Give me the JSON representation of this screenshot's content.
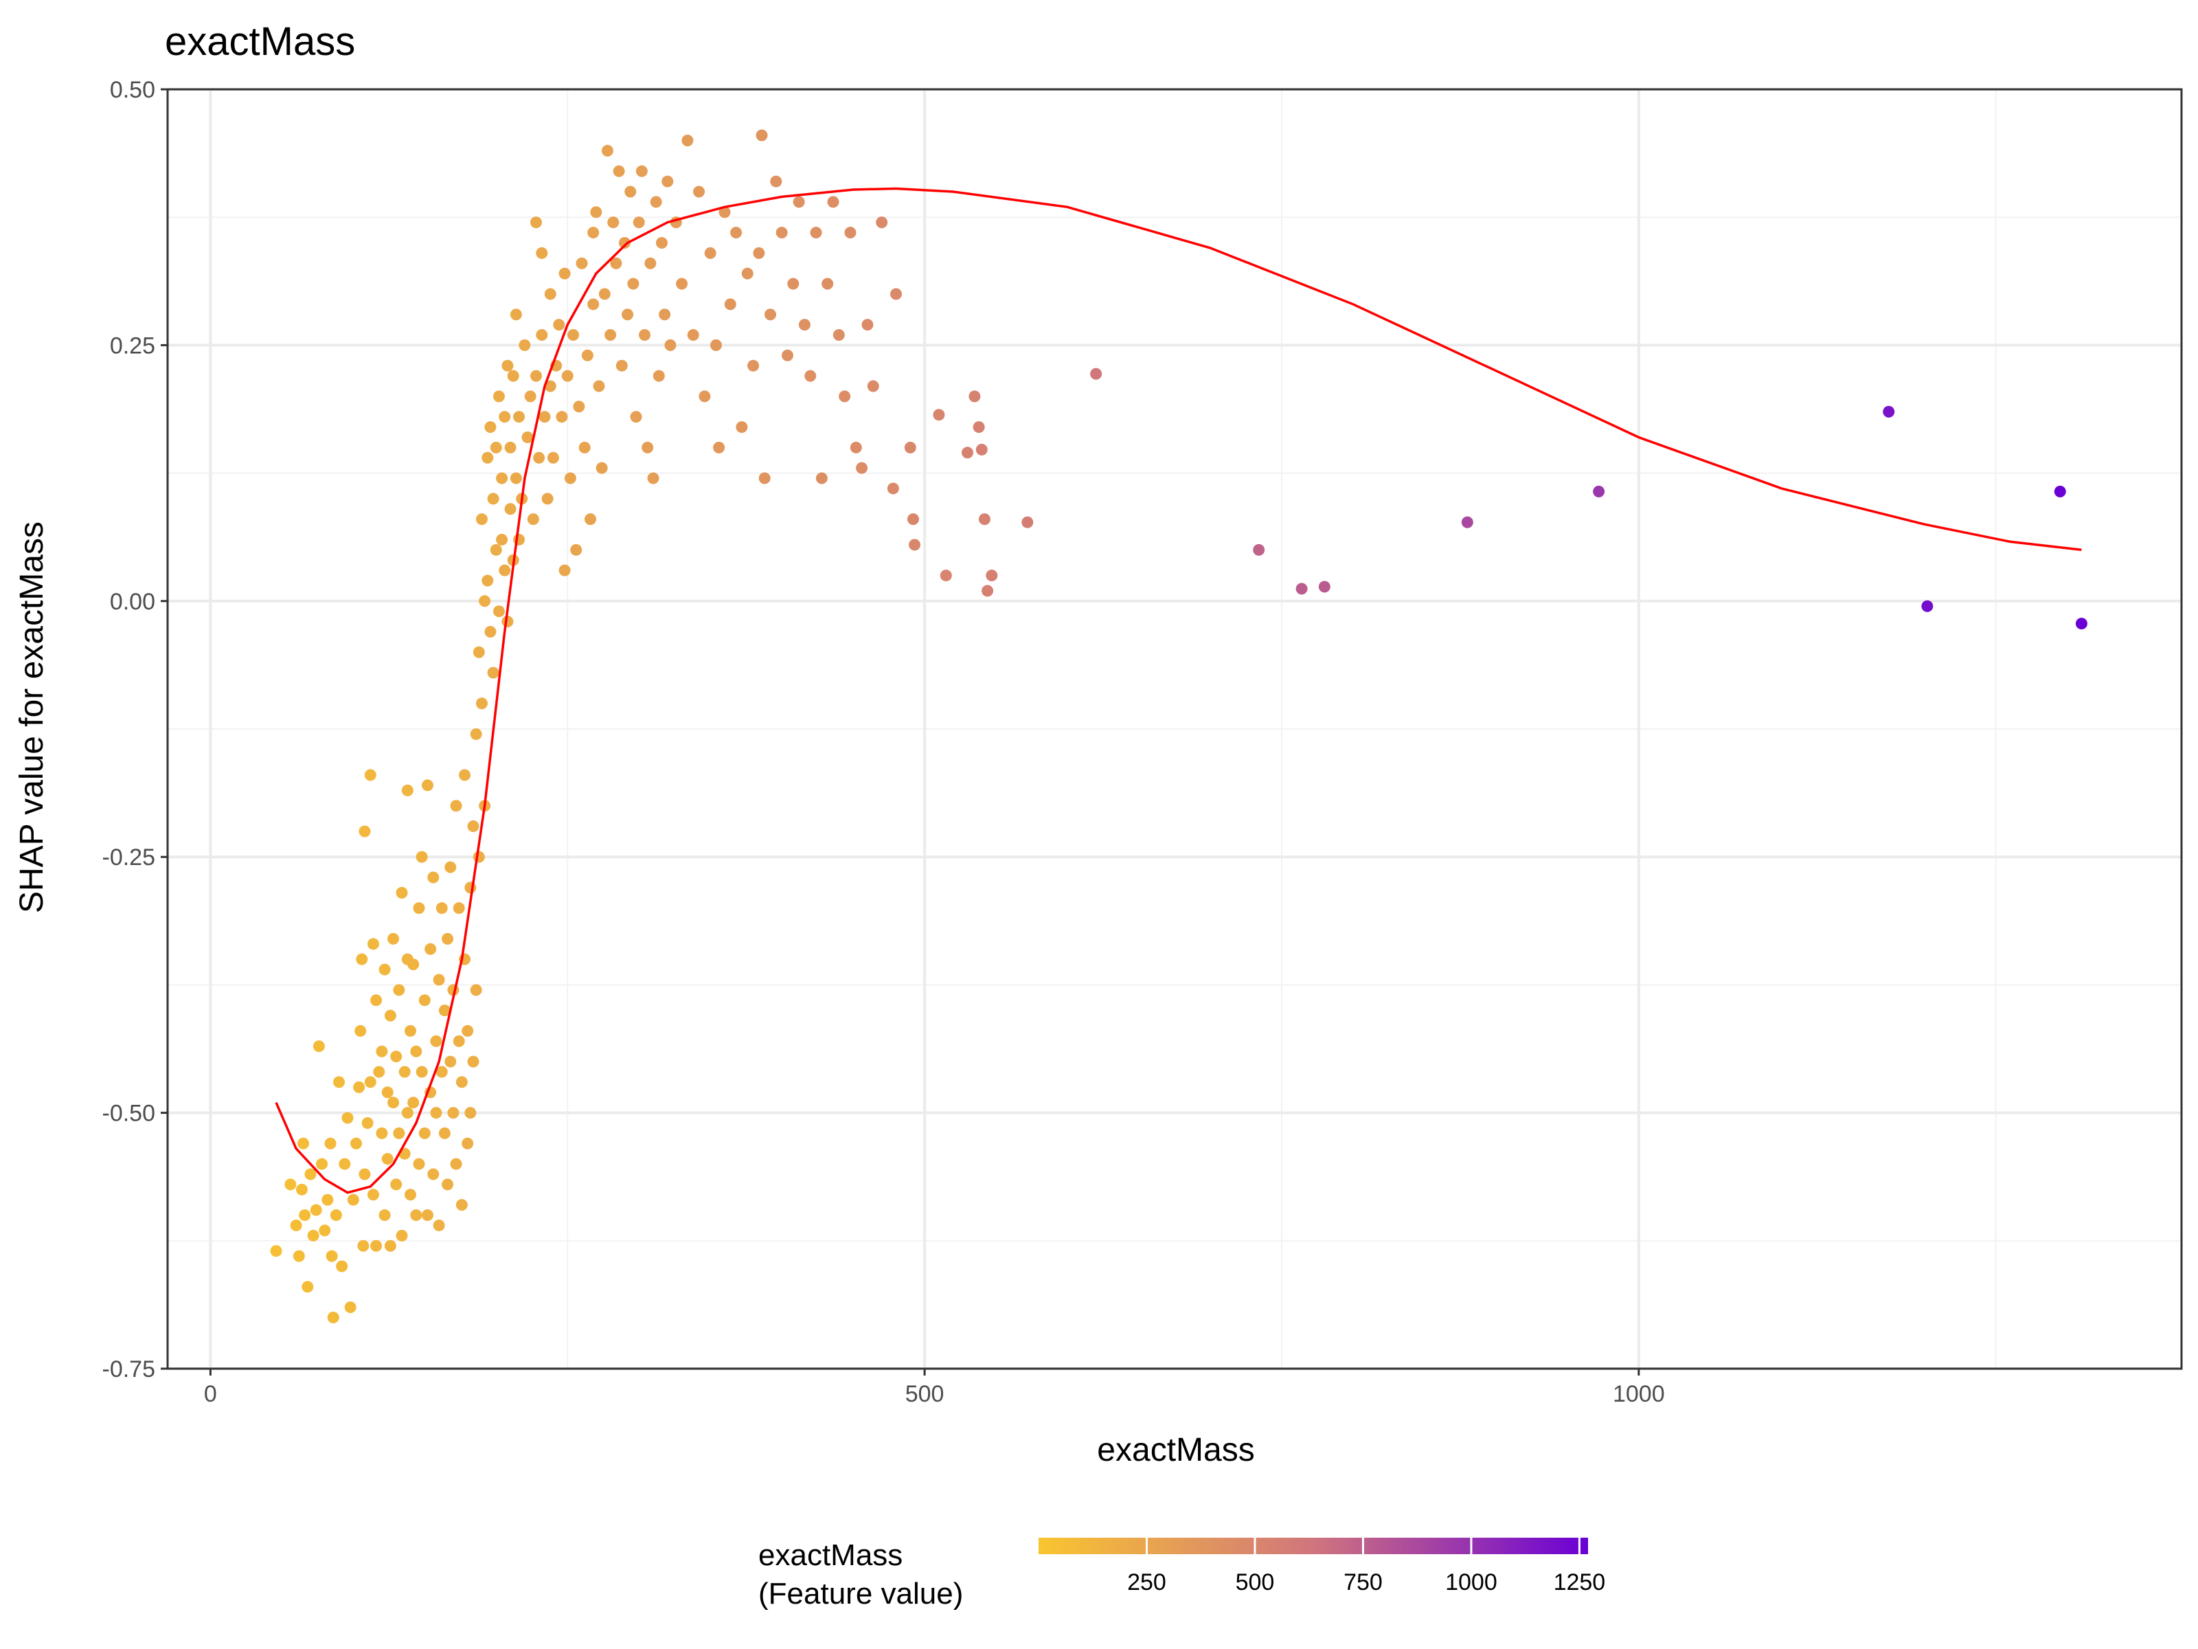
{
  "chart_data": {
    "type": "scatter",
    "title": "exactMass",
    "xlabel": "exactMass",
    "ylabel": "SHAP value for exactMass",
    "xlim": [
      -30,
      1380
    ],
    "ylim": [
      -0.75,
      0.5
    ],
    "x_ticks": [
      0,
      500,
      1000
    ],
    "x_tick_labels": [
      "0",
      "500",
      "1000"
    ],
    "y_ticks": [
      -0.75,
      -0.5,
      -0.25,
      0,
      0.25,
      0.5
    ],
    "y_tick_labels": [
      "-0.75",
      "-0.50",
      "-0.25",
      "0.00",
      "0.25",
      "0.50"
    ],
    "grid": true,
    "legend": {
      "title_line1": "exactMass",
      "title_line2": "(Feature value)",
      "position": "bottom",
      "range": [
        0,
        1270
      ],
      "ticks": [
        250,
        500,
        750,
        1000,
        1250
      ],
      "tick_labels": [
        "250",
        "500",
        "750",
        "1000",
        "1250"
      ],
      "color_low": "#f9c52f",
      "color_mid": "#d0757d",
      "color_high": "#6a00d6"
    },
    "colors": {
      "smooth_line": "#ff0000",
      "panel_border": "#333333",
      "grid_major": "#ebebeb",
      "grid_minor": "#f2f2f2"
    },
    "series": [
      {
        "type": "scatter",
        "points": [
          [
            46,
            -0.635
          ],
          [
            56,
            -0.57
          ],
          [
            60,
            -0.61
          ],
          [
            62,
            -0.64
          ],
          [
            64,
            -0.575
          ],
          [
            65,
            -0.53
          ],
          [
            66,
            -0.6
          ],
          [
            68,
            -0.67
          ],
          [
            70,
            -0.56
          ],
          [
            72,
            -0.62
          ],
          [
            74,
            -0.595
          ],
          [
            76,
            -0.435
          ],
          [
            78,
            -0.55
          ],
          [
            80,
            -0.615
          ],
          [
            82,
            -0.585
          ],
          [
            84,
            -0.53
          ],
          [
            85,
            -0.64
          ],
          [
            86,
            -0.7
          ],
          [
            88,
            -0.6
          ],
          [
            90,
            -0.47
          ],
          [
            92,
            -0.65
          ],
          [
            94,
            -0.55
          ],
          [
            96,
            -0.505
          ],
          [
            98,
            -0.69
          ],
          [
            100,
            -0.585
          ],
          [
            102,
            -0.53
          ],
          [
            104,
            -0.475
          ],
          [
            105,
            -0.42
          ],
          [
            106,
            -0.35
          ],
          [
            107,
            -0.63
          ],
          [
            108,
            -0.225
          ],
          [
            108,
            -0.56
          ],
          [
            110,
            -0.51
          ],
          [
            112,
            -0.17
          ],
          [
            112,
            -0.47
          ],
          [
            114,
            -0.335
          ],
          [
            114,
            -0.58
          ],
          [
            116,
            -0.39
          ],
          [
            116,
            -0.63
          ],
          [
            118,
            -0.46
          ],
          [
            120,
            -0.52
          ],
          [
            120,
            -0.44
          ],
          [
            122,
            -0.36
          ],
          [
            122,
            -0.6
          ],
          [
            124,
            -0.48
          ],
          [
            124,
            -0.545
          ],
          [
            126,
            -0.405
          ],
          [
            126,
            -0.63
          ],
          [
            128,
            -0.33
          ],
          [
            128,
            -0.49
          ],
          [
            130,
            -0.57
          ],
          [
            130,
            -0.445
          ],
          [
            132,
            -0.38
          ],
          [
            132,
            -0.52
          ],
          [
            134,
            -0.285
          ],
          [
            134,
            -0.62
          ],
          [
            136,
            -0.46
          ],
          [
            136,
            -0.54
          ],
          [
            138,
            -0.185
          ],
          [
            138,
            -0.35
          ],
          [
            138,
            -0.5
          ],
          [
            140,
            -0.42
          ],
          [
            140,
            -0.58
          ],
          [
            142,
            -0.355
          ],
          [
            142,
            -0.49
          ],
          [
            144,
            -0.6
          ],
          [
            144,
            -0.44
          ],
          [
            146,
            -0.3
          ],
          [
            146,
            -0.55
          ],
          [
            148,
            -0.25
          ],
          [
            148,
            -0.46
          ],
          [
            150,
            -0.39
          ],
          [
            150,
            -0.52
          ],
          [
            152,
            -0.18
          ],
          [
            152,
            -0.6
          ],
          [
            154,
            -0.48
          ],
          [
            154,
            -0.34
          ],
          [
            156,
            -0.27
          ],
          [
            156,
            -0.56
          ],
          [
            158,
            -0.43
          ],
          [
            158,
            -0.5
          ],
          [
            160,
            -0.37
          ],
          [
            160,
            -0.61
          ],
          [
            162,
            -0.3
          ],
          [
            162,
            -0.46
          ],
          [
            164,
            -0.52
          ],
          [
            164,
            -0.4
          ],
          [
            166,
            -0.33
          ],
          [
            166,
            -0.57
          ],
          [
            168,
            -0.45
          ],
          [
            168,
            -0.26
          ],
          [
            170,
            -0.5
          ],
          [
            170,
            -0.38
          ],
          [
            172,
            -0.2
          ],
          [
            172,
            -0.55
          ],
          [
            174,
            -0.43
          ],
          [
            174,
            -0.3
          ],
          [
            176,
            -0.47
          ],
          [
            176,
            -0.59
          ],
          [
            178,
            -0.35
          ],
          [
            178,
            -0.17
          ],
          [
            180,
            -0.42
          ],
          [
            180,
            -0.53
          ],
          [
            182,
            -0.28
          ],
          [
            182,
            -0.5
          ],
          [
            184,
            -0.45
          ],
          [
            184,
            -0.22
          ],
          [
            186,
            -0.13
          ],
          [
            186,
            -0.38
          ],
          [
            188,
            -0.05
          ],
          [
            188,
            -0.25
          ],
          [
            190,
            0.08
          ],
          [
            190,
            -0.1
          ],
          [
            192,
            0.0
          ],
          [
            192,
            -0.2
          ],
          [
            194,
            0.14
          ],
          [
            194,
            0.02
          ],
          [
            196,
            -0.03
          ],
          [
            196,
            0.17
          ],
          [
            198,
            0.1
          ],
          [
            198,
            -0.07
          ],
          [
            200,
            0.05
          ],
          [
            200,
            0.15
          ],
          [
            202,
            -0.01
          ],
          [
            202,
            0.2
          ],
          [
            204,
            0.12
          ],
          [
            204,
            0.06
          ],
          [
            206,
            0.03
          ],
          [
            206,
            0.18
          ],
          [
            208,
            0.23
          ],
          [
            208,
            -0.02
          ],
          [
            210,
            0.09
          ],
          [
            210,
            0.15
          ],
          [
            212,
            0.22
          ],
          [
            212,
            0.04
          ],
          [
            214,
            0.28
          ],
          [
            214,
            0.12
          ],
          [
            216,
            0.18
          ],
          [
            216,
            0.06
          ],
          [
            218,
            0.1
          ],
          [
            220,
            0.25
          ],
          [
            222,
            0.16
          ],
          [
            224,
            0.2
          ],
          [
            226,
            0.08
          ],
          [
            228,
            0.37
          ],
          [
            228,
            0.22
          ],
          [
            230,
            0.14
          ],
          [
            232,
            0.34
          ],
          [
            232,
            0.26
          ],
          [
            234,
            0.18
          ],
          [
            236,
            0.1
          ],
          [
            238,
            0.3
          ],
          [
            238,
            0.21
          ],
          [
            240,
            0.14
          ],
          [
            242,
            0.23
          ],
          [
            244,
            0.27
          ],
          [
            246,
            0.18
          ],
          [
            248,
            0.03
          ],
          [
            248,
            0.32
          ],
          [
            250,
            0.22
          ],
          [
            252,
            0.12
          ],
          [
            254,
            0.26
          ],
          [
            256,
            0.05
          ],
          [
            258,
            0.19
          ],
          [
            260,
            0.33
          ],
          [
            262,
            0.15
          ],
          [
            264,
            0.24
          ],
          [
            266,
            0.08
          ],
          [
            268,
            0.36
          ],
          [
            268,
            0.29
          ],
          [
            270,
            0.38
          ],
          [
            272,
            0.21
          ],
          [
            274,
            0.13
          ],
          [
            276,
            0.3
          ],
          [
            278,
            0.44
          ],
          [
            280,
            0.26
          ],
          [
            282,
            0.37
          ],
          [
            284,
            0.33
          ],
          [
            286,
            0.42
          ],
          [
            288,
            0.23
          ],
          [
            290,
            0.35
          ],
          [
            292,
            0.28
          ],
          [
            294,
            0.4
          ],
          [
            296,
            0.31
          ],
          [
            298,
            0.18
          ],
          [
            300,
            0.37
          ],
          [
            302,
            0.42
          ],
          [
            304,
            0.26
          ],
          [
            306,
            0.15
          ],
          [
            308,
            0.33
          ],
          [
            310,
            0.12
          ],
          [
            312,
            0.39
          ],
          [
            314,
            0.22
          ],
          [
            316,
            0.35
          ],
          [
            318,
            0.28
          ],
          [
            320,
            0.41
          ],
          [
            322,
            0.25
          ],
          [
            326,
            0.37
          ],
          [
            330,
            0.31
          ],
          [
            334,
            0.45
          ],
          [
            338,
            0.26
          ],
          [
            342,
            0.4
          ],
          [
            346,
            0.2
          ],
          [
            350,
            0.34
          ],
          [
            354,
            0.25
          ],
          [
            356,
            0.15
          ],
          [
            360,
            0.38
          ],
          [
            364,
            0.29
          ],
          [
            368,
            0.36
          ],
          [
            372,
            0.17
          ],
          [
            376,
            0.32
          ],
          [
            380,
            0.23
          ],
          [
            384,
            0.34
          ],
          [
            386,
            0.455
          ],
          [
            388,
            0.12
          ],
          [
            392,
            0.28
          ],
          [
            396,
            0.41
          ],
          [
            400,
            0.36
          ],
          [
            404,
            0.24
          ],
          [
            408,
            0.31
          ],
          [
            412,
            0.39
          ],
          [
            416,
            0.27
          ],
          [
            420,
            0.22
          ],
          [
            424,
            0.36
          ],
          [
            428,
            0.12
          ],
          [
            432,
            0.31
          ],
          [
            436,
            0.39
          ],
          [
            440,
            0.26
          ],
          [
            444,
            0.2
          ],
          [
            448,
            0.36
          ],
          [
            452,
            0.15
          ],
          [
            456,
            0.13
          ],
          [
            460,
            0.27
          ],
          [
            464,
            0.21
          ],
          [
            470,
            0.37
          ],
          [
            478,
            0.11
          ],
          [
            480,
            0.3
          ],
          [
            490,
            0.15
          ],
          [
            492,
            0.08
          ],
          [
            493,
            0.055
          ],
          [
            510,
            0.182
          ],
          [
            515,
            0.025
          ],
          [
            530,
            0.145
          ],
          [
            535,
            0.2
          ],
          [
            538,
            0.17
          ],
          [
            540,
            0.148
          ],
          [
            542,
            0.08
          ],
          [
            544,
            0.01
          ],
          [
            547,
            0.025
          ],
          [
            572,
            0.077
          ],
          [
            620,
            0.222
          ],
          [
            734,
            0.05
          ],
          [
            764,
            0.012
          ],
          [
            780,
            0.014
          ],
          [
            880,
            0.077
          ],
          [
            972,
            0.107
          ],
          [
            1175,
            0.185
          ],
          [
            1202,
            -0.005
          ],
          [
            1295,
            0.107
          ],
          [
            1310,
            -0.022
          ]
        ]
      },
      {
        "type": "line",
        "points": [
          [
            46,
            -0.49
          ],
          [
            60,
            -0.535
          ],
          [
            80,
            -0.565
          ],
          [
            96,
            -0.578
          ],
          [
            112,
            -0.572
          ],
          [
            128,
            -0.55
          ],
          [
            144,
            -0.51
          ],
          [
            160,
            -0.45
          ],
          [
            176,
            -0.35
          ],
          [
            192,
            -0.2
          ],
          [
            206,
            -0.03
          ],
          [
            220,
            0.12
          ],
          [
            234,
            0.21
          ],
          [
            250,
            0.27
          ],
          [
            270,
            0.32
          ],
          [
            292,
            0.35
          ],
          [
            320,
            0.37
          ],
          [
            360,
            0.385
          ],
          [
            400,
            0.395
          ],
          [
            450,
            0.402
          ],
          [
            480,
            0.403
          ],
          [
            520,
            0.4
          ],
          [
            600,
            0.385
          ],
          [
            700,
            0.345
          ],
          [
            800,
            0.29
          ],
          [
            900,
            0.225
          ],
          [
            1000,
            0.16
          ],
          [
            1100,
            0.11
          ],
          [
            1200,
            0.075
          ],
          [
            1260,
            0.058
          ],
          [
            1310,
            0.05
          ]
        ]
      }
    ]
  }
}
